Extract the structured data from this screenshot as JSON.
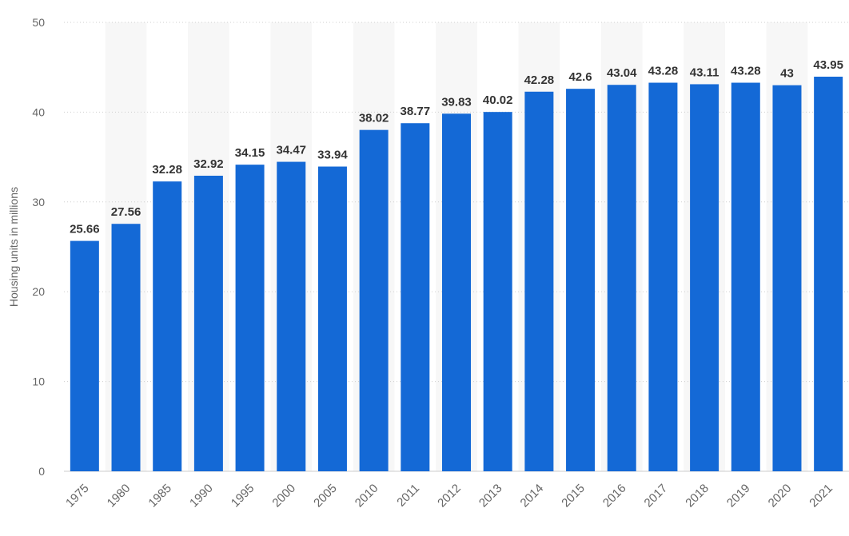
{
  "chart_data": {
    "type": "bar",
    "title": "",
    "xlabel": "",
    "ylabel": "Housing units in millions",
    "ylim": [
      0,
      50
    ],
    "yticks": [
      0,
      10,
      20,
      30,
      40,
      50
    ],
    "grid": "horizontal dotted",
    "bar_color": "#1469d6",
    "band_color": "#f7f7f7",
    "categories": [
      "1975",
      "1980",
      "1985",
      "1990",
      "1995",
      "2000",
      "2005",
      "2010",
      "2011",
      "2012",
      "2013",
      "2014",
      "2015",
      "2016",
      "2017",
      "2018",
      "2019",
      "2020",
      "2021"
    ],
    "values": [
      25.66,
      27.56,
      32.28,
      32.92,
      34.15,
      34.47,
      33.94,
      38.02,
      38.77,
      39.83,
      40.02,
      42.28,
      42.6,
      43.04,
      43.28,
      43.11,
      43.28,
      43,
      43.95
    ],
    "value_labels": [
      "25.66",
      "27.56",
      "32.28",
      "32.92",
      "34.15",
      "34.47",
      "33.94",
      "38.02",
      "38.77",
      "39.83",
      "40.02",
      "42.28",
      "42.6",
      "43.04",
      "43.28",
      "43.11",
      "43.28",
      "43",
      "43.95"
    ]
  }
}
